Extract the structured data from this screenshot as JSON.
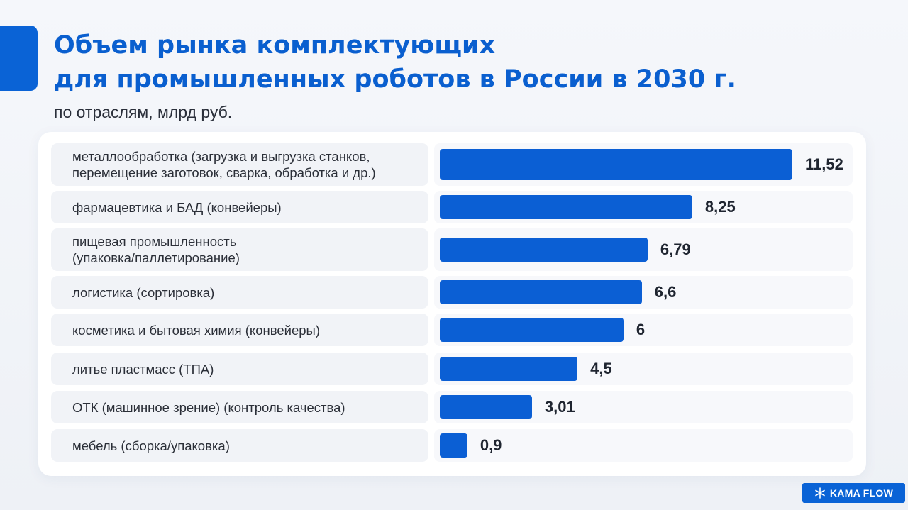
{
  "title_line1": "Объем рынка комплектующих",
  "title_line2": "для промышленных роботов в России в 2030 г.",
  "subtitle": "по отраслям, млрд руб.",
  "brand": {
    "logo_icon": "snowflake-icon",
    "name": "KAMA FLOW"
  },
  "colors": {
    "accent": "#0a63d6",
    "bar": "#0b5fd4",
    "title": "#0a5fcf"
  },
  "chart_data": {
    "type": "bar",
    "orientation": "horizontal",
    "categories": [
      [
        "металлообработка (загрузка и выгрузка станков,",
        "перемещение заготовок, сварка, обработка и др.)"
      ],
      [
        "фармацевтика и БАД (конвейеры)"
      ],
      [
        "пищевая промышленность",
        "(упаковка/паллетирование)"
      ],
      [
        "логистика (сортировка)"
      ],
      [
        "косметика и бытовая химия (конвейеры)"
      ],
      [
        "литье пластмасс (ТПА)"
      ],
      [
        "ОТК (машинное зрение) (контроль качества)"
      ],
      [
        "мебель (сборка/упаковка)"
      ]
    ],
    "values": [
      11.52,
      8.25,
      6.79,
      6.6,
      6,
      4.5,
      3.01,
      0.9
    ],
    "value_labels": [
      "11,52",
      "8,25",
      "6,79",
      "6,6",
      "6",
      "4,5",
      "3,01",
      "0,9"
    ],
    "xlim": [
      0,
      11.52
    ],
    "grid": false,
    "legend": "none"
  }
}
